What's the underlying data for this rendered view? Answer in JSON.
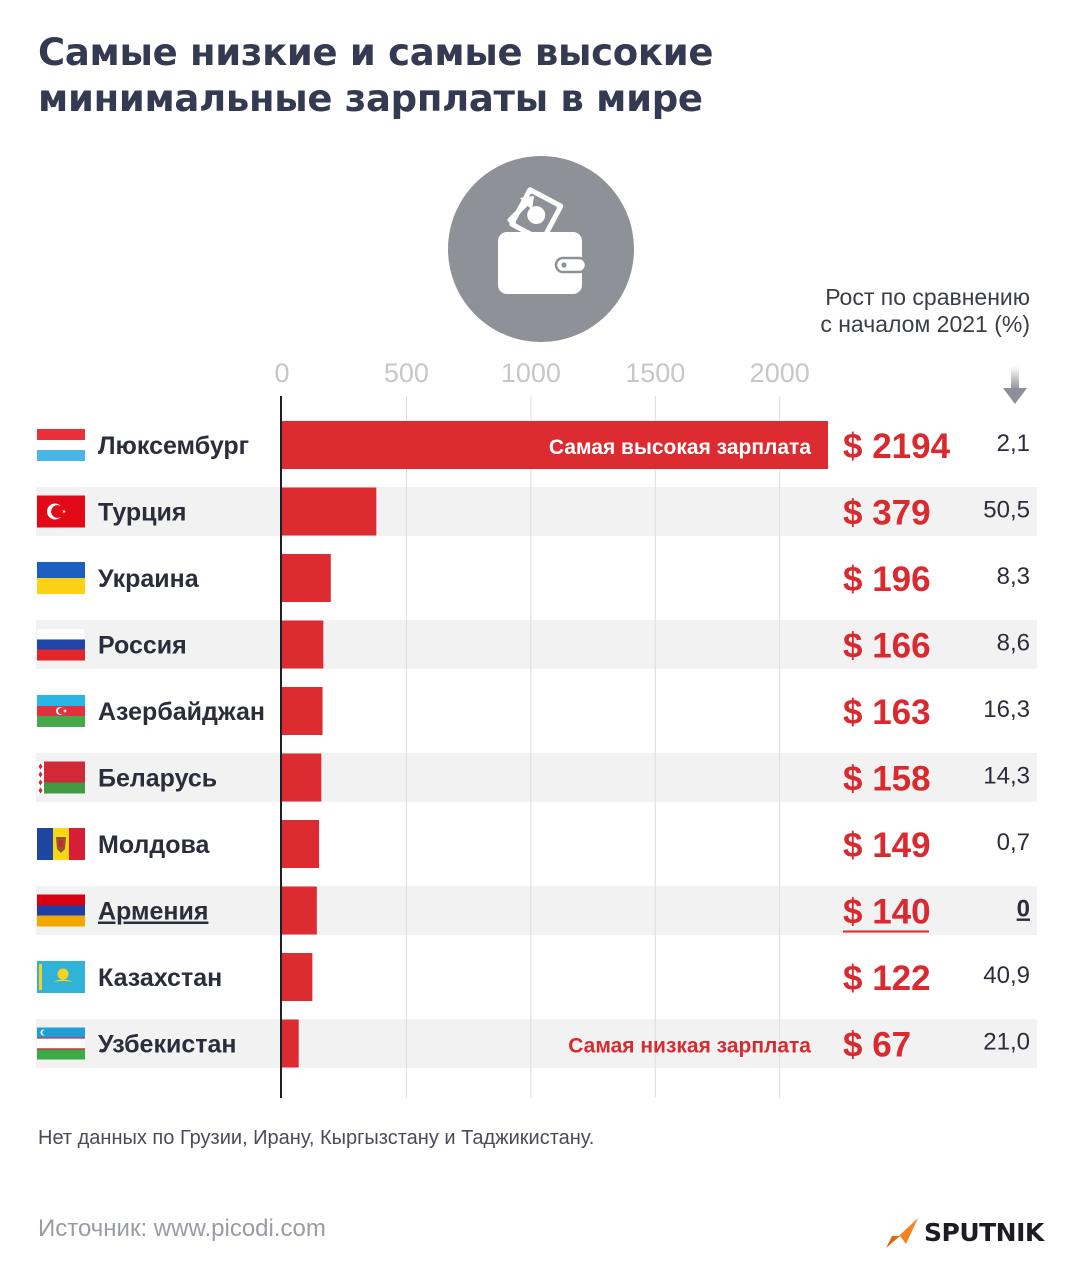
{
  "title": "Самые низкие и самые высокие минимальные зарплаты в мире",
  "growth_header": [
    "Рост по сравнению",
    "с началом 2021 (%)"
  ],
  "footnote": "Нет данных по Грузии, Ирану, Кыргызстану и Таджикистану.",
  "source": "Источник: www.picodi.com",
  "logo_text": "SPUTNIK",
  "icons": {
    "header": "wallet-money-icon",
    "growth": "arrow-down-icon",
    "logo": "sputnik-logo-icon"
  },
  "colors": {
    "bar": "#dc2b31",
    "value": "#d82a2f",
    "title": "#343a52",
    "stripe": "#f2f2f3",
    "axis_tick": "#c6c7cc",
    "logo_accent": "#f58220"
  },
  "chart_data": {
    "type": "bar",
    "orientation": "horizontal",
    "xlim": [
      0,
      2200
    ],
    "x_ticks": [
      0,
      500,
      1000,
      1500,
      2000
    ],
    "currency_symbol": "$",
    "categories": [
      "Люксембург",
      "Турция",
      "Украина",
      "Россия",
      "Азербайджан",
      "Беларусь",
      "Молдова",
      "Армения",
      "Казахстан",
      "Узбекистан"
    ],
    "values": [
      2194,
      379,
      196,
      166,
      163,
      158,
      149,
      140,
      122,
      67
    ],
    "growth": [
      "2,1",
      "50,5",
      "8,3",
      "8,6",
      "16,3",
      "14,3",
      "0,7",
      "0",
      "40,9",
      "21,0"
    ],
    "flags": [
      "luxembourg-flag-icon",
      "turkey-flag-icon",
      "ukraine-flag-icon",
      "russia-flag-icon",
      "azerbaijan-flag-icon",
      "belarus-flag-icon",
      "moldova-flag-icon",
      "armenia-flag-icon",
      "kazakhstan-flag-icon",
      "uzbekistan-flag-icon"
    ],
    "highlight_index": 7,
    "annotations": {
      "highest": "Самая высокая зарплата",
      "lowest": "Самая низкая зарплата"
    }
  }
}
